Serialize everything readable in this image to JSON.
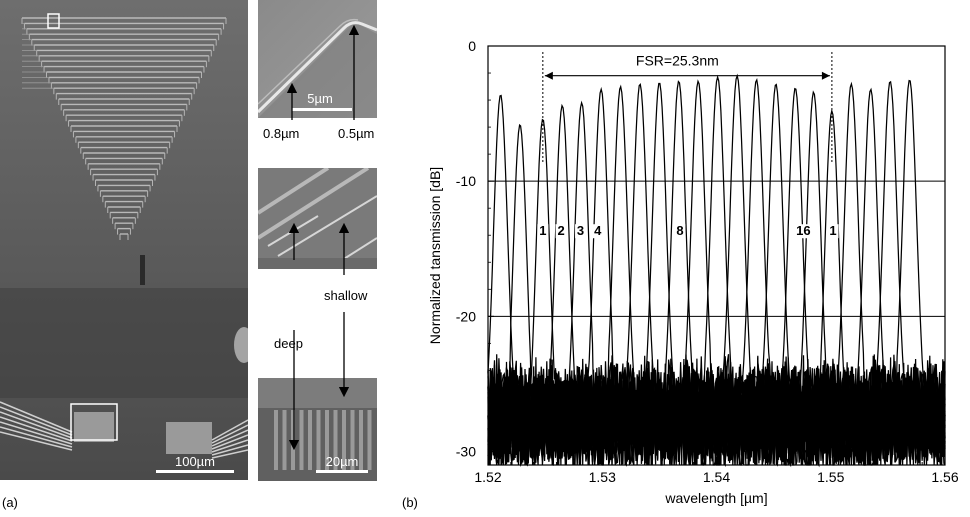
{
  "figure": {
    "panel_a_label": "(a)",
    "panel_b_label": "(b)"
  },
  "sem": {
    "main_scale": "100µm",
    "top_scale": "5µm",
    "bottom_scale": "20µm",
    "width_left": "0.8µm",
    "width_right": "0.5µm",
    "deep_label": "deep",
    "shallow_label": "shallow"
  },
  "chart_data": {
    "type": "line",
    "xlabel": "wavelength [µm]",
    "ylabel": "Normalized tansmission [dB]",
    "xlim": [
      1.52,
      1.56
    ],
    "ylim": [
      -31,
      0
    ],
    "x_ticks": [
      "1.52",
      "1.53",
      "1.54",
      "1.55",
      "1.56"
    ],
    "y_ticks": [
      "0",
      "-10",
      "-20",
      "-30"
    ],
    "gridlines_y": [
      -10,
      -20
    ],
    "fsr_label": "FSR=25.3nm",
    "fsr_range": [
      1.5248,
      1.5501
    ],
    "channel_peaks_um": [
      1.5211,
      1.5228,
      1.5248,
      1.5265,
      1.5282,
      1.5299,
      1.5316,
      1.5333,
      1.535,
      1.5367,
      1.5384,
      1.5401,
      1.5418,
      1.5435,
      1.5452,
      1.5469,
      1.5485,
      1.5501,
      1.5518,
      1.5535,
      1.5552,
      1.5569
    ],
    "channel_peak_db": [
      -3.6,
      -5.8,
      -5.4,
      -4.4,
      -4.2,
      -3.2,
      -3.0,
      -2.8,
      -2.7,
      -2.6,
      -2.6,
      -2.3,
      -2.2,
      -2.5,
      -2.8,
      -3.1,
      -3.4,
      -4.8,
      -2.8,
      -3.2,
      -2.6,
      -2.5
    ],
    "peak_labels": [
      {
        "text": "1",
        "x": 1.5248,
        "y": -14.0
      },
      {
        "text": "2",
        "x": 1.5264,
        "y": -14.0
      },
      {
        "text": "3",
        "x": 1.5281,
        "y": -14.0
      },
      {
        "text": "4",
        "x": 1.5296,
        "y": -14.0
      },
      {
        "text": "8",
        "x": 1.5368,
        "y": -14.0
      },
      {
        "text": "16",
        "x": 1.5476,
        "y": -14.0
      },
      {
        "text": "1",
        "x": 1.5502,
        "y": -14.0
      }
    ]
  }
}
